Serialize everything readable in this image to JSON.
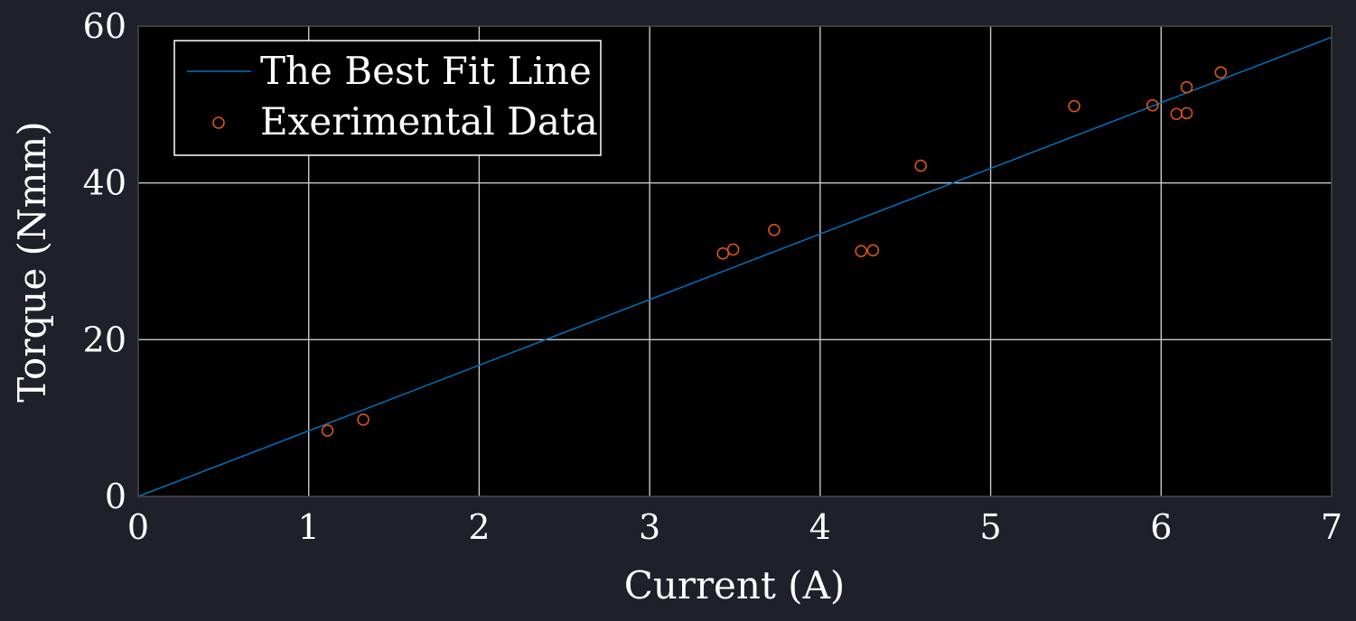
{
  "chart_data": {
    "type": "scatter",
    "title": "",
    "xlabel": "Current (A)",
    "ylabel": "Torque (Nmm)",
    "xlim": [
      0,
      7
    ],
    "ylim": [
      0,
      60
    ],
    "xticks": [
      "0",
      "1",
      "2",
      "3",
      "4",
      "5",
      "6",
      "7"
    ],
    "yticks": [
      "0",
      "20",
      "40",
      "60"
    ],
    "grid": true,
    "legend_position": "top-left",
    "series": [
      {
        "name": "The Best Fit Line",
        "kind": "line",
        "color": "#0072bd",
        "x": [
          0,
          7
        ],
        "y": [
          0,
          58.6
        ]
      },
      {
        "name": "Exerimental Data",
        "kind": "scatter",
        "marker": "open-circle",
        "color": "#d95319",
        "x": [
          1.11,
          1.32,
          3.43,
          3.49,
          3.73,
          4.24,
          4.31,
          4.59,
          5.49,
          5.95,
          6.09,
          6.15,
          6.15,
          6.35
        ],
        "y": [
          8.4,
          9.8,
          31.0,
          31.5,
          34.0,
          31.3,
          31.4,
          42.2,
          49.8,
          49.9,
          48.8,
          48.9,
          52.2,
          54.1
        ]
      }
    ]
  },
  "colors": {
    "background": "#1f2029",
    "plot_area": "#000000",
    "grid": "#c8c8c8",
    "text": "#ffffff"
  }
}
